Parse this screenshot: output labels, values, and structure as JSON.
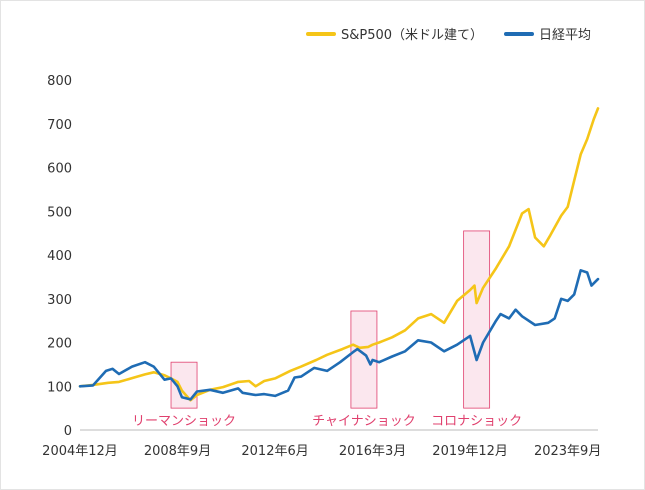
{
  "chart_data": {
    "type": "line",
    "ylim": [
      0,
      800
    ],
    "yticks": [
      0,
      100,
      200,
      300,
      400,
      500,
      600,
      700,
      800
    ],
    "xlim": [
      "2004-12",
      "2024-11"
    ],
    "xticks": [
      {
        "date": "2004-12",
        "label": "2004年12月"
      },
      {
        "date": "2008-09",
        "label": "2008年9月"
      },
      {
        "date": "2012-06",
        "label": "2012年6月"
      },
      {
        "date": "2016-03",
        "label": "2016年3月"
      },
      {
        "date": "2019-12",
        "label": "2019年12月"
      },
      {
        "date": "2023-09",
        "label": "2023年9月"
      }
    ],
    "grid": false,
    "legend_position": "top-right",
    "colors": {
      "sp500": "#f5c518",
      "nikkei": "#1f6cb4",
      "highlight_fill": "#fbe7ee",
      "highlight_stroke": "#e0406e",
      "annotation_text": "#e0406e"
    },
    "series": [
      {
        "name": "S&P500（米ドル建て）",
        "color": "#f5c518",
        "points": [
          [
            "2004-12",
            100
          ],
          [
            "2005-06",
            103
          ],
          [
            "2006-01",
            108
          ],
          [
            "2006-06",
            110
          ],
          [
            "2007-01",
            120
          ],
          [
            "2007-06",
            127
          ],
          [
            "2007-10",
            132
          ],
          [
            "2008-03",
            125
          ],
          [
            "2008-06",
            118
          ],
          [
            "2008-09",
            110
          ],
          [
            "2008-11",
            90
          ],
          [
            "2009-03",
            68
          ],
          [
            "2009-06",
            80
          ],
          [
            "2009-12",
            92
          ],
          [
            "2010-06",
            98
          ],
          [
            "2011-01",
            110
          ],
          [
            "2011-06",
            112
          ],
          [
            "2011-09",
            100
          ],
          [
            "2012-01",
            112
          ],
          [
            "2012-06",
            118
          ],
          [
            "2013-01",
            135
          ],
          [
            "2013-06",
            145
          ],
          [
            "2014-01",
            160
          ],
          [
            "2014-06",
            172
          ],
          [
            "2015-01",
            185
          ],
          [
            "2015-06",
            195
          ],
          [
            "2015-09",
            188
          ],
          [
            "2016-01",
            190
          ],
          [
            "2016-03",
            195
          ],
          [
            "2016-06",
            200
          ],
          [
            "2016-12",
            212
          ],
          [
            "2017-06",
            228
          ],
          [
            "2017-12",
            255
          ],
          [
            "2018-06",
            265
          ],
          [
            "2018-12",
            245
          ],
          [
            "2019-06",
            295
          ],
          [
            "2019-12",
            320
          ],
          [
            "2020-02",
            330
          ],
          [
            "2020-03",
            290
          ],
          [
            "2020-06",
            325
          ],
          [
            "2020-12",
            370
          ],
          [
            "2021-06",
            420
          ],
          [
            "2021-12",
            495
          ],
          [
            "2022-03",
            505
          ],
          [
            "2022-06",
            440
          ],
          [
            "2022-10",
            420
          ],
          [
            "2023-01",
            445
          ],
          [
            "2023-06",
            490
          ],
          [
            "2023-09",
            510
          ],
          [
            "2023-12",
            570
          ],
          [
            "2024-03",
            630
          ],
          [
            "2024-06",
            665
          ],
          [
            "2024-09",
            710
          ],
          [
            "2024-11",
            735
          ]
        ]
      },
      {
        "name": "日経平均",
        "color": "#1f6cb4",
        "points": [
          [
            "2004-12",
            100
          ],
          [
            "2005-06",
            102
          ],
          [
            "2005-12",
            135
          ],
          [
            "2006-03",
            140
          ],
          [
            "2006-06",
            128
          ],
          [
            "2006-12",
            145
          ],
          [
            "2007-06",
            155
          ],
          [
            "2007-10",
            145
          ],
          [
            "2008-03",
            115
          ],
          [
            "2008-06",
            118
          ],
          [
            "2008-09",
            100
          ],
          [
            "2008-11",
            75
          ],
          [
            "2009-03",
            70
          ],
          [
            "2009-06",
            88
          ],
          [
            "2009-12",
            92
          ],
          [
            "2010-06",
            85
          ],
          [
            "2011-01",
            95
          ],
          [
            "2011-03",
            85
          ],
          [
            "2011-09",
            80
          ],
          [
            "2012-01",
            82
          ],
          [
            "2012-06",
            78
          ],
          [
            "2012-12",
            90
          ],
          [
            "2013-03",
            120
          ],
          [
            "2013-06",
            122
          ],
          [
            "2013-12",
            142
          ],
          [
            "2014-06",
            135
          ],
          [
            "2014-12",
            155
          ],
          [
            "2015-06",
            178
          ],
          [
            "2015-08",
            185
          ],
          [
            "2015-12",
            170
          ],
          [
            "2016-02",
            150
          ],
          [
            "2016-03",
            160
          ],
          [
            "2016-06",
            155
          ],
          [
            "2016-12",
            168
          ],
          [
            "2017-06",
            180
          ],
          [
            "2017-12",
            205
          ],
          [
            "2018-06",
            200
          ],
          [
            "2018-12",
            180
          ],
          [
            "2019-06",
            195
          ],
          [
            "2019-12",
            215
          ],
          [
            "2020-03",
            160
          ],
          [
            "2020-06",
            200
          ],
          [
            "2020-12",
            250
          ],
          [
            "2021-02",
            265
          ],
          [
            "2021-06",
            255
          ],
          [
            "2021-09",
            275
          ],
          [
            "2021-12",
            260
          ],
          [
            "2022-06",
            240
          ],
          [
            "2022-12",
            245
          ],
          [
            "2023-03",
            255
          ],
          [
            "2023-06",
            300
          ],
          [
            "2023-09",
            295
          ],
          [
            "2023-12",
            310
          ],
          [
            "2024-03",
            365
          ],
          [
            "2024-06",
            360
          ],
          [
            "2024-08",
            330
          ],
          [
            "2024-11",
            345
          ]
        ]
      }
    ],
    "annotations": [
      {
        "label": "リーマンショック",
        "from": "2008-06",
        "to": "2009-06",
        "ymin": 50,
        "ymax": 155
      },
      {
        "label": "チャイナショック",
        "from": "2015-05",
        "to": "2016-05",
        "ymin": 50,
        "ymax": 272
      },
      {
        "label": "コロナショック",
        "from": "2019-09",
        "to": "2020-09",
        "ymin": 50,
        "ymax": 455
      }
    ]
  }
}
